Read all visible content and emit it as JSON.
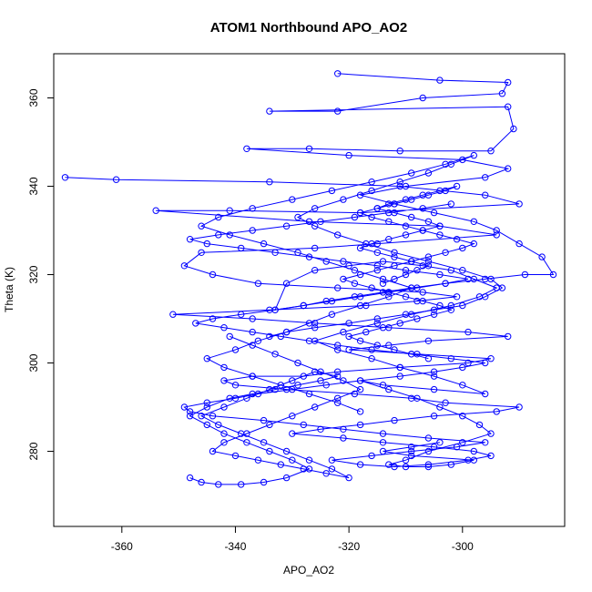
{
  "chart_data": {
    "type": "line",
    "title": "ATOM1 Northbound APO_AO2",
    "xlabel": "APO_AO2",
    "ylabel": "Theta (K)",
    "xlim": [
      -372,
      -282
    ],
    "ylim": [
      263,
      370
    ],
    "x_ticks": [
      -360,
      -340,
      -320,
      -300
    ],
    "y_ticks": [
      280,
      300,
      320,
      340,
      360
    ],
    "grid": false,
    "legend": "none",
    "marker": "open-circle",
    "series": [
      {
        "color": "#0000ff",
        "x": [
          -370.0,
          -361.0,
          -334.0,
          -311.0,
          -296.0,
          -290.0,
          -318.0,
          -341.0,
          -354.0,
          -327.0,
          -304.0,
          -294.0,
          -315.0,
          -326.0,
          -346.0,
          -349.0,
          -344.0,
          -336.0,
          -322.0,
          -307.0,
          -301.0,
          -308.0,
          -317.0,
          -334.0,
          -351.0,
          -337.0,
          -326.0,
          -313.0,
          -299.0,
          -292.0,
          -306.0,
          -313.0,
          -320.0,
          -308.0,
          -295.0,
          -299.0,
          -311.0,
          -322.0,
          -328.0,
          -337.0,
          -342.0,
          -340.0,
          -331.0,
          -319.0,
          -309.0,
          -303.0,
          -290.0,
          -294.0,
          -305.0,
          -312.0,
          -318.0,
          -325.0,
          -330.0,
          -321.0,
          -314.0,
          -305.0,
          -298.0,
          -295.0,
          -299.0,
          -306.0,
          -312.0,
          -318.0,
          -323.0,
          -316.0,
          -309.0,
          -301.0,
          -296.0,
          -306.0,
          -314.0,
          -321.0,
          -328.0,
          -335.0,
          -344.0,
          -348.0,
          -349.0,
          -345.0,
          -340.0,
          -336.0,
          -330.0,
          -324.0,
          -318.0,
          -311.0,
          -305.0,
          -300.0,
          -296.0,
          -302.0,
          -309.0,
          -316.0,
          -322.0,
          -327.0,
          -332.0,
          -337.0,
          -342.0,
          -347.0,
          -344.0,
          -339.0,
          -333.0,
          -328.0,
          -323.0,
          -318.0,
          -313.0,
          -308.0,
          -303.0,
          -299.0,
          -304.0,
          -310.0,
          -315.0,
          -321.0,
          -327.0,
          -333.0,
          -339.0,
          -345.0,
          -348.0,
          -343.0,
          -337.0,
          -331.0,
          -325.0,
          -319.0,
          -313.0,
          -307.0,
          -302.0
        ],
        "y": [
          342,
          341.5,
          341,
          340,
          338,
          336,
          334,
          334.5,
          334.5,
          332,
          331,
          329,
          327,
          326,
          325,
          322,
          320,
          318,
          317,
          316,
          315,
          314,
          313,
          312,
          311,
          310,
          309,
          308,
          307,
          306,
          305,
          304,
          303,
          302,
          301,
          300,
          299,
          298,
          297,
          297,
          296,
          295,
          294,
          293,
          292,
          291,
          290,
          289,
          288,
          287,
          286,
          285,
          284,
          283,
          282,
          281,
          280,
          279,
          278,
          277,
          276.5,
          277,
          278,
          279,
          280,
          281,
          282,
          283,
          284,
          285,
          286,
          287,
          288,
          289,
          290,
          291,
          292,
          293,
          294,
          295,
          296,
          297,
          298,
          299,
          300,
          301,
          302,
          303,
          304,
          305,
          306,
          307,
          308,
          309,
          310,
          311,
          312,
          313,
          314,
          315,
          316,
          317,
          318,
          319,
          320,
          321,
          322,
          323,
          324,
          325,
          326,
          327,
          328,
          329,
          330,
          331,
          332,
          333,
          334,
          335,
          336
        ]
      },
      {
        "color": "#0000ff",
        "x": [
          -322,
          -304,
          -292,
          -293,
          -307,
          -322,
          -334,
          -292,
          -291,
          -295,
          -311,
          -327,
          -338,
          -320,
          -300,
          -292,
          -296,
          -310,
          -318,
          -312,
          -305,
          -298,
          -294,
          -290,
          -286,
          -284,
          -289,
          -296,
          -303,
          -309,
          -314,
          -319,
          -324,
          -328,
          -333,
          -331,
          -326,
          -320,
          -314,
          -307,
          -302,
          -298,
          -294,
          -297,
          -302,
          -309,
          -315,
          -321,
          -326,
          -322,
          -316,
          -311,
          -305,
          -300,
          -296,
          -305,
          -314,
          -318,
          -313,
          -308,
          -304,
          -300,
          -297,
          -295,
          -300,
          -306,
          -310,
          -313,
          -310,
          -306,
          -302,
          -298,
          -309,
          -314,
          -309,
          -304
        ],
        "y": [
          365.5,
          364,
          363.5,
          361,
          360,
          357,
          357,
          358,
          353,
          348,
          348,
          348.5,
          348.5,
          347,
          346,
          344,
          342,
          340,
          338,
          336,
          334,
          332,
          330,
          327,
          324,
          320,
          320,
          319,
          318,
          317,
          316,
          315,
          314,
          313,
          312,
          318,
          321,
          322,
          323,
          322,
          321,
          319,
          317,
          315,
          313,
          311,
          309,
          307,
          305,
          303,
          301,
          299,
          297,
          295,
          293,
          294,
          295,
          296,
          294,
          292,
          290,
          288,
          286,
          284,
          282,
          280,
          278,
          277,
          276.5,
          276.5,
          277,
          278,
          279,
          280,
          281,
          282
        ]
      },
      {
        "color": "#0000ff",
        "x": [
          -334,
          -331,
          -326,
          -320,
          -315,
          -310,
          -305,
          -300,
          -296,
          -293,
          -295,
          -300,
          -306,
          -312,
          -317,
          -322,
          -326,
          -329,
          -326,
          -321,
          -316,
          -311,
          -306,
          -302,
          -298,
          -303,
          -309,
          -316,
          -323,
          -330,
          -337,
          -343,
          -346,
          -341,
          -335,
          -329,
          -324,
          -319,
          -314,
          -309,
          -313,
          -318,
          -323,
          -327,
          -331,
          -336,
          -340,
          -345,
          -342,
          -337,
          -332,
          -327,
          -322,
          -318
        ],
        "y": [
          306,
          307,
          308,
          309,
          310,
          311,
          312,
          313,
          315,
          317,
          319,
          321,
          323,
          325,
          327,
          329,
          331,
          333,
          335,
          337,
          339,
          341,
          343,
          345,
          347,
          345,
          343,
          341,
          339,
          337,
          335,
          333,
          331,
          329,
          327,
          325,
          323,
          321,
          319,
          317,
          315,
          313,
          311,
          309,
          307,
          305,
          303,
          301,
          299,
          297,
          295,
          293,
          291,
          289
        ]
      },
      {
        "color": "#0000ff",
        "x": [
          -348,
          -346,
          -343,
          -339,
          -335,
          -331,
          -327,
          -330,
          -334,
          -338,
          -342,
          -345,
          -348,
          -345,
          -341,
          -337,
          -333,
          -329,
          -325,
          -322,
          -326,
          -330,
          -334,
          -338,
          -342,
          -346,
          -343,
          -339,
          -335,
          -331,
          -327,
          -323,
          -320,
          -324,
          -328,
          -332,
          -336,
          -340,
          -344,
          -342,
          -338,
          -334,
          -330,
          -326,
          -322,
          -318,
          -321,
          -325,
          -329,
          -333,
          -337,
          -341
        ],
        "y": [
          274,
          273,
          272.5,
          272.5,
          273,
          274,
          276,
          278,
          280,
          282,
          284,
          286,
          288,
          290,
          292,
          293,
          294,
          295,
          296,
          297,
          298,
          296,
          294,
          292,
          290,
          288,
          286,
          284,
          282,
          280,
          278,
          276,
          274,
          275,
          276,
          277,
          278,
          279,
          280,
          282,
          284,
          286,
          288,
          290,
          292,
          294,
          296,
          298,
          300,
          302,
          304,
          306
        ]
      },
      {
        "color": "#0000ff",
        "x": [
          -314,
          -312,
          -310,
          -308,
          -306,
          -309,
          -312,
          -315,
          -318,
          -316,
          -313,
          -310,
          -307,
          -304,
          -306,
          -309,
          -312,
          -315,
          -313,
          -310,
          -307,
          -304,
          -301,
          -303,
          -306,
          -309,
          -312,
          -315,
          -318,
          -316,
          -313,
          -310,
          -307,
          -304,
          -301,
          -298,
          -300,
          -303,
          -306,
          -309,
          -312,
          -315,
          -318,
          -321,
          -319,
          -316,
          -313,
          -310,
          -307,
          -304,
          -302,
          -305,
          -308,
          -311,
          -314,
          -317,
          -320,
          -318,
          -315,
          -312,
          -309,
          -306
        ],
        "y": [
          318,
          319,
          320,
          321,
          322,
          323,
          324,
          325,
          326,
          327,
          328,
          329,
          330,
          331,
          332,
          333,
          334,
          335,
          336,
          337,
          338,
          339,
          340,
          339,
          338,
          337,
          336,
          335,
          334,
          333,
          332,
          331,
          330,
          329,
          328,
          327,
          326,
          325,
          324,
          323,
          322,
          321,
          320,
          319,
          318,
          317,
          316,
          315,
          314,
          313,
          312,
          311,
          310,
          309,
          308,
          307,
          306,
          305,
          304,
          303,
          302,
          301
        ]
      }
    ]
  }
}
